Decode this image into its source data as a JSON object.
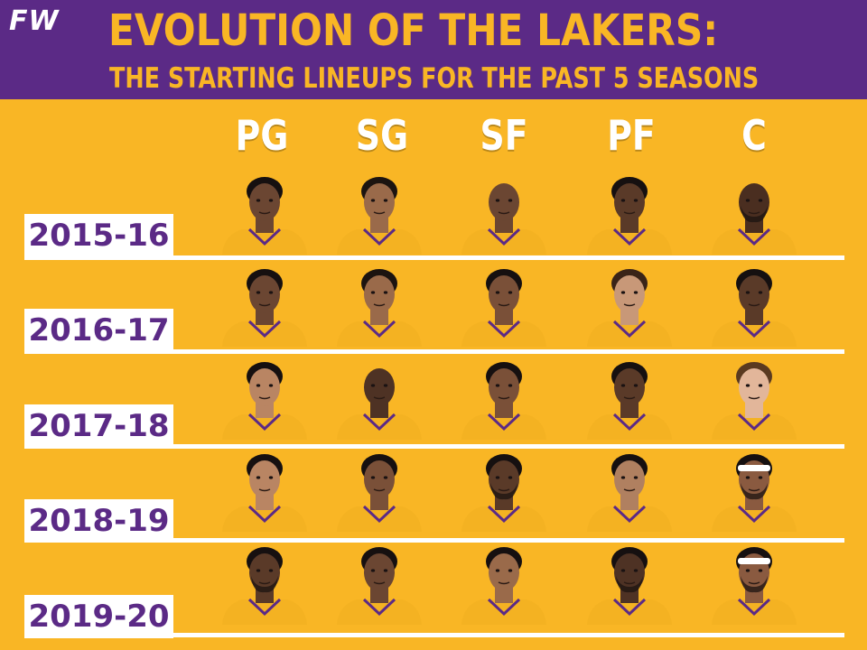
{
  "header": {
    "logo": "FW",
    "title": "EVOLUTION OF THE LAKERS:",
    "subtitle": "THE STARTING LINEUPS FOR THE PAST 5 SEASONS"
  },
  "positions": [
    "PG",
    "SG",
    "SF",
    "PF",
    "C"
  ],
  "seasons": [
    {
      "label": "2015-16",
      "players": [
        {
          "skin": "#6b4632",
          "hair": "#161010",
          "jersey": "#f4b222",
          "beard": false
        },
        {
          "skin": "#9a6a4a",
          "hair": "#1c1410",
          "jersey": "#f4b222",
          "beard": false
        },
        {
          "skin": "#6b4632",
          "hair": "none",
          "jersey": "#f4b222",
          "beard": false
        },
        {
          "skin": "#5a3a28",
          "hair": "#161010",
          "jersey": "#f4b222",
          "beard": false
        },
        {
          "skin": "#4a2e20",
          "hair": "none",
          "jersey": "#f4b222",
          "beard": true
        }
      ]
    },
    {
      "label": "2016-17",
      "players": [
        {
          "skin": "#6b4632",
          "hair": "#161010",
          "jersey": "#f4b222",
          "beard": false
        },
        {
          "skin": "#9a6a4a",
          "hair": "#1c1410",
          "jersey": "#f4b222",
          "beard": false
        },
        {
          "skin": "#7a5038",
          "hair": "#161010",
          "jersey": "#f4b222",
          "beard": false
        },
        {
          "skin": "#c89878",
          "hair": "#3a2418",
          "jersey": "#f4b222",
          "beard": false
        },
        {
          "skin": "#5a3a28",
          "hair": "#161010",
          "jersey": "#f4b222",
          "beard": false
        }
      ]
    },
    {
      "label": "2017-18",
      "players": [
        {
          "skin": "#b98563",
          "hair": "#161010",
          "jersey": "#f4b222",
          "beard": false
        },
        {
          "skin": "#4e3224",
          "hair": "none",
          "jersey": "#f4b222",
          "beard": false
        },
        {
          "skin": "#7a5038",
          "hair": "#161010",
          "jersey": "#f4b222",
          "beard": false
        },
        {
          "skin": "#5a3a28",
          "hair": "#161010",
          "jersey": "#f4b222",
          "beard": false
        },
        {
          "skin": "#e2b69a",
          "hair": "#5a3a20",
          "jersey": "#f4b222",
          "beard": false
        }
      ]
    },
    {
      "label": "2018-19",
      "players": [
        {
          "skin": "#b98563",
          "hair": "#161010",
          "jersey": "#f4b222",
          "beard": false
        },
        {
          "skin": "#7a5038",
          "hair": "#161010",
          "jersey": "#f4b222",
          "beard": false
        },
        {
          "skin": "#5a3a28",
          "hair": "#161010",
          "jersey": "#f4b222",
          "beard": true
        },
        {
          "skin": "#b08060",
          "hair": "#161010",
          "jersey": "#f4b222",
          "beard": false
        },
        {
          "skin": "#8a5a40",
          "hair": "#161010",
          "jersey": "#f4b222",
          "beard": true,
          "headband": true
        }
      ]
    },
    {
      "label": "2019-20",
      "players": [
        {
          "skin": "#5a3a28",
          "hair": "#161010",
          "jersey": "#f4b222",
          "beard": true
        },
        {
          "skin": "#6b4632",
          "hair": "#161010",
          "jersey": "#f4b222",
          "beard": false
        },
        {
          "skin": "#9a6a4a",
          "hair": "#161010",
          "jersey": "#f4b222",
          "beard": false
        },
        {
          "skin": "#4e3224",
          "hair": "#161010",
          "jersey": "#f4b222",
          "beard": true
        },
        {
          "skin": "#8a5a40",
          "hair": "#161010",
          "jersey": "#f4b222",
          "beard": true,
          "headband": true
        }
      ]
    }
  ],
  "colors": {
    "lakers_purple": "#5b2a86",
    "lakers_gold": "#f9b625",
    "white": "#ffffff"
  }
}
